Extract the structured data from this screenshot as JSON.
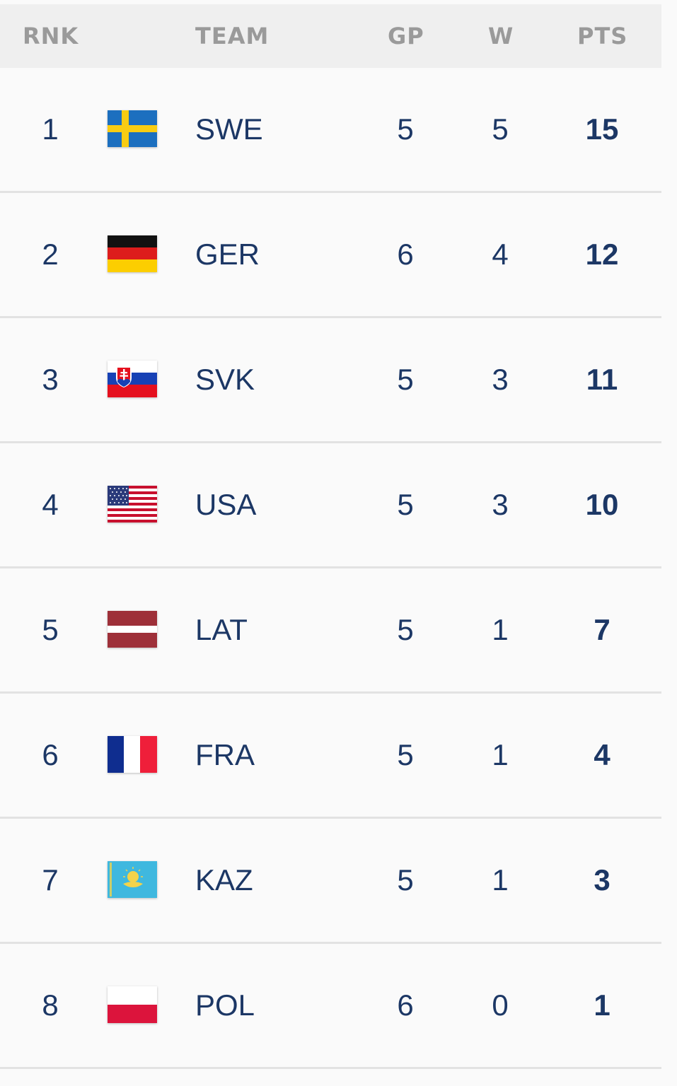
{
  "columns": {
    "rank": "RNK",
    "team": "TEAM",
    "gp": "GP",
    "w": "W",
    "pts": "PTS"
  },
  "rows": [
    {
      "rank": "1",
      "team": "SWE",
      "gp": "5",
      "w": "5",
      "pts": "15",
      "flag": "sweden-flag-icon"
    },
    {
      "rank": "2",
      "team": "GER",
      "gp": "6",
      "w": "4",
      "pts": "12",
      "flag": "germany-flag-icon"
    },
    {
      "rank": "3",
      "team": "SVK",
      "gp": "5",
      "w": "3",
      "pts": "11",
      "flag": "slovakia-flag-icon"
    },
    {
      "rank": "4",
      "team": "USA",
      "gp": "5",
      "w": "3",
      "pts": "10",
      "flag": "usa-flag-icon"
    },
    {
      "rank": "5",
      "team": "LAT",
      "gp": "5",
      "w": "1",
      "pts": "7",
      "flag": "latvia-flag-icon"
    },
    {
      "rank": "6",
      "team": "FRA",
      "gp": "5",
      "w": "1",
      "pts": "4",
      "flag": "france-flag-icon"
    },
    {
      "rank": "7",
      "team": "KAZ",
      "gp": "5",
      "w": "1",
      "pts": "3",
      "flag": "kazakhstan-flag-icon"
    },
    {
      "rank": "8",
      "team": "POL",
      "gp": "6",
      "w": "0",
      "pts": "1",
      "flag": "poland-flag-icon"
    }
  ],
  "colors": {
    "text": "#1c3765",
    "header_text": "#9a9a9a",
    "header_bg": "#efefef",
    "divider": "#e2e2e2"
  }
}
